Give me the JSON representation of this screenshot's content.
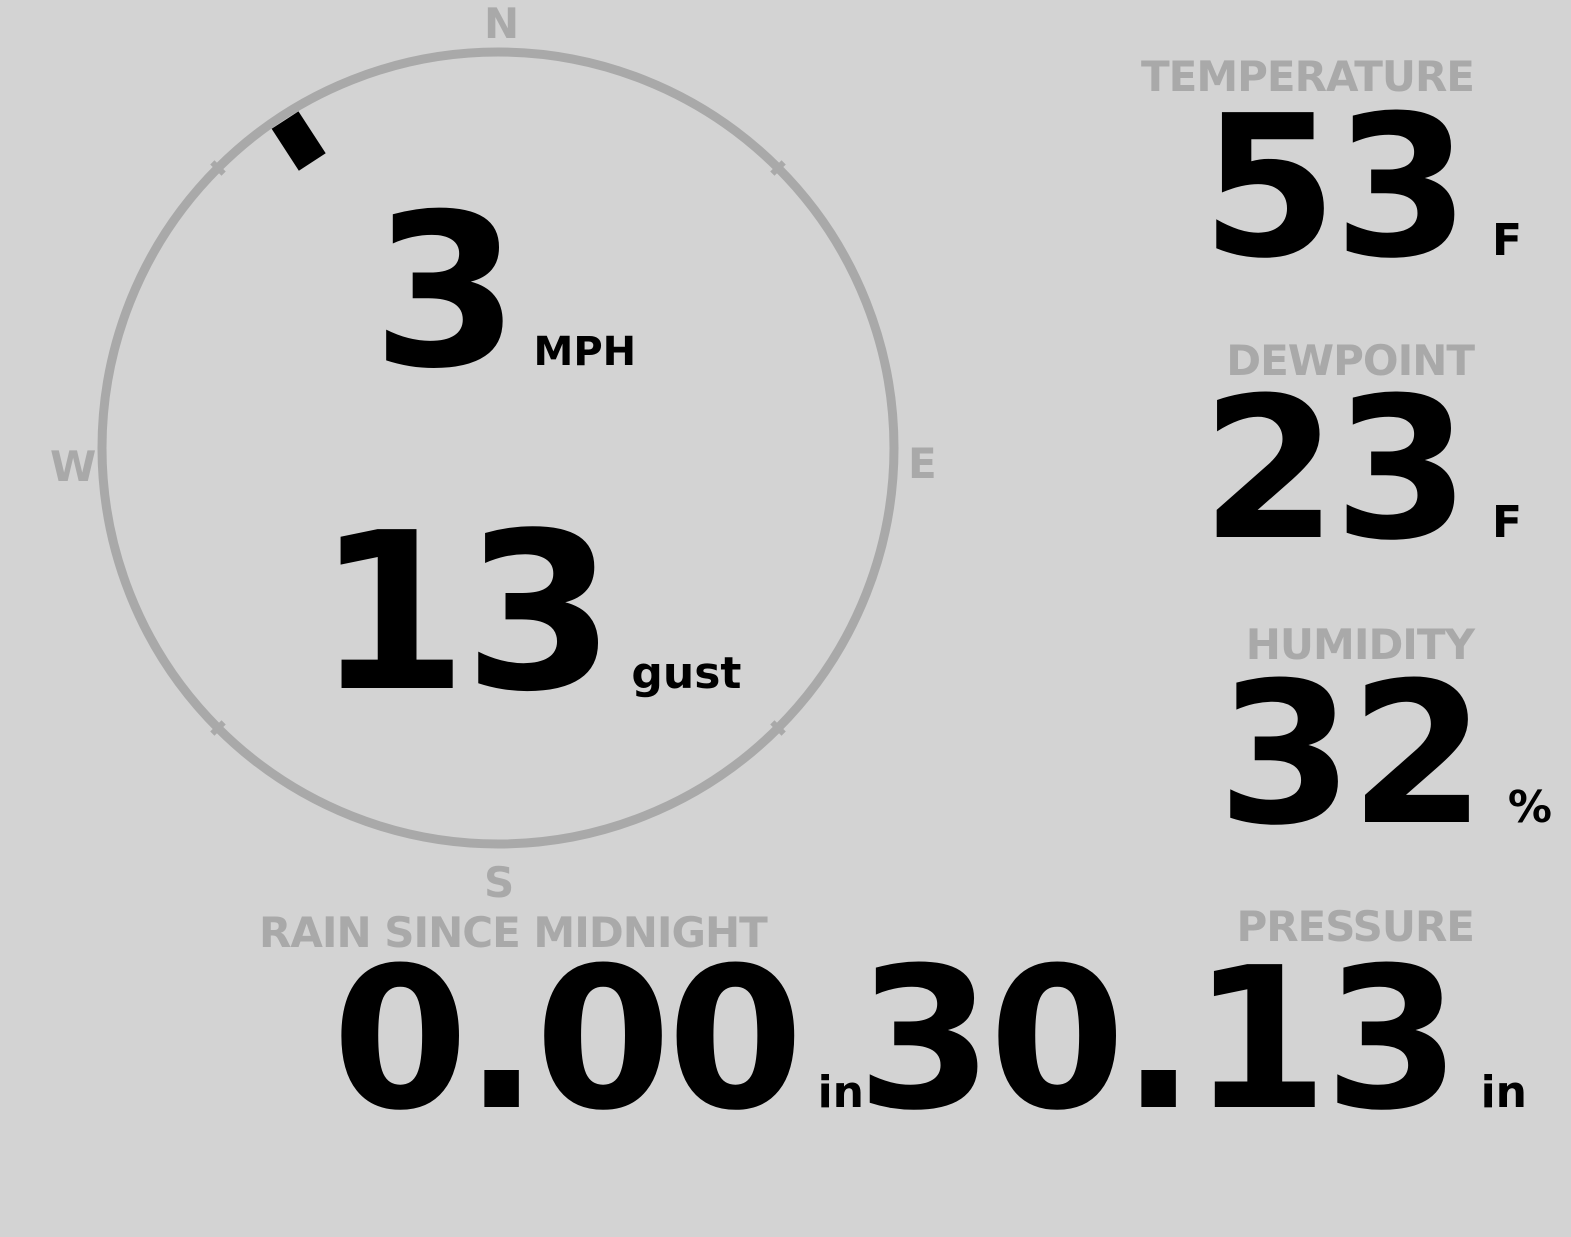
{
  "wind": {
    "direction_degrees": 327,
    "speed": "3",
    "speed_unit": "MPH",
    "gust": "13",
    "gust_unit": "gust",
    "compass": {
      "n": "N",
      "e": "E",
      "s": "S",
      "w": "W"
    }
  },
  "temperature": {
    "label": "TEMPERATURE",
    "value": "53",
    "unit": "F"
  },
  "dewpoint": {
    "label": "DEWPOINT",
    "value": "23",
    "unit": "F"
  },
  "humidity": {
    "label": "HUMIDITY",
    "value": "32",
    "unit": "%"
  },
  "rain": {
    "label": "RAIN SINCE MIDNIGHT",
    "value": "0.00",
    "unit": "in"
  },
  "pressure": {
    "label": "PRESSURE",
    "value": "30.13",
    "unit": "in"
  },
  "colors": {
    "background": "#d3d3d3",
    "ring": "#a9a9a9",
    "label": "#a9a9a9",
    "value": "#000000"
  }
}
